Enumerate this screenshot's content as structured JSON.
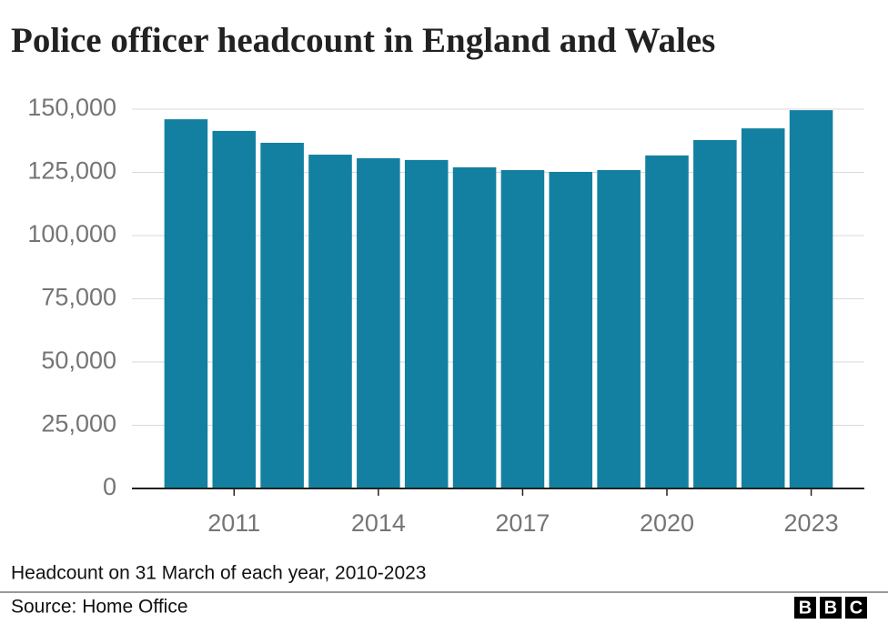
{
  "chart_data": {
    "type": "bar",
    "title": "Police officer headcount in England and Wales",
    "categories": [
      null,
      "2011",
      null,
      null,
      "2014",
      null,
      null,
      "2017",
      null,
      null,
      "2020",
      null,
      null,
      "2023"
    ],
    "values": [
      146000,
      141400,
      136700,
      132000,
      130600,
      129900,
      127000,
      125900,
      125200,
      125900,
      131700,
      137800,
      142400,
      149600
    ],
    "color": "#1380a1",
    "ylim": [
      0,
      150000
    ],
    "yticks": [
      0,
      {
        "value": 25000,
        "label": "25,000"
      },
      {
        "value": 50000,
        "label": "50,000"
      },
      {
        "value": 75000,
        "label": "75,000"
      },
      {
        "value": 100000,
        "label": "100,000"
      },
      {
        "value": 125000,
        "label": "125,000"
      },
      {
        "value": 150000,
        "label": "150,000"
      }
    ],
    "grid": true,
    "note": "Headcount on 31 March of each year, 2010-2023",
    "source": "Source: Home Office",
    "logo": [
      "B",
      "B",
      "C"
    ]
  }
}
